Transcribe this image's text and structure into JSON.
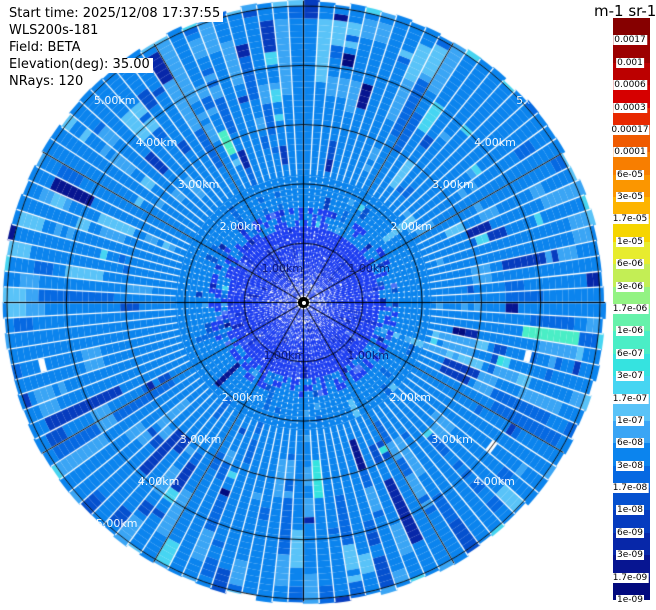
{
  "header": {
    "lines": [
      "Start time: 2025/12/08 17:37:55",
      "WLS200s-181",
      "Field: BETA",
      "Elevation(deg): 35.00",
      "NRays: 120"
    ]
  },
  "colorbar": {
    "title": "m-1 sr-1",
    "tick_labels": [
      "0.0017",
      "0.001",
      "0.0006",
      "0.0003",
      "0.00017",
      "0.0001",
      "6e-05",
      "3e-05",
      "1.7e-05",
      "1e-05",
      "6e-06",
      "3e-06",
      "1.7e-06",
      "1e-06",
      "6e-07",
      "3e-07",
      "1.7e-07",
      "1e-07",
      "6e-08",
      "3e-08",
      "1.7e-08",
      "1e-08",
      "6e-09",
      "3e-09",
      "1.7e-09",
      "1e-09"
    ],
    "segment_colors": [
      "#860000",
      "#9c0000",
      "#bc0000",
      "#d60000",
      "#e82800",
      "#f05a00",
      "#f87e00",
      "#fb9600",
      "#fdb400",
      "#f6d500",
      "#e7ec2e",
      "#c3ee55",
      "#93f383",
      "#66f2ab",
      "#4aeec6",
      "#35e3e0",
      "#46d5f2",
      "#59c3f8",
      "#3aa5f5",
      "#0b84ee",
      "#0669e2",
      "#0551cf",
      "#063cbf",
      "#0727a9",
      "#071591",
      "#020a7e"
    ]
  },
  "chart_data": {
    "type": "heatmap",
    "projection": "polar",
    "title": "m-1 sr-1",
    "instrument": "WLS200s-181",
    "field": "BETA",
    "start_time": "2025/12/08 17:37:55",
    "elevation_deg": 35.0,
    "n_rays": 120,
    "rings_km": [
      1,
      2,
      3,
      4,
      5
    ],
    "ring_labels": [
      "1.00km",
      "2.00km",
      "3.00km",
      "4.00km",
      "5.00km"
    ],
    "colorbar_ticks": [
      "0.0017",
      "0.001",
      "0.0006",
      "0.0003",
      "0.00017",
      "0.0001",
      "6e-05",
      "3e-05",
      "1.7e-05",
      "1e-05",
      "6e-06",
      "3e-06",
      "1.7e-06",
      "1e-06",
      "6e-07",
      "3e-07",
      "1.7e-07",
      "1e-07",
      "6e-08",
      "3e-08",
      "1.7e-08",
      "1e-08",
      "6e-09",
      "3e-09",
      "1.7e-09",
      "1e-09"
    ],
    "value_range_min": "1e-09",
    "value_range_max": "0.0017",
    "dominant_value": "3e-08",
    "units": "m-1 sr-1"
  }
}
